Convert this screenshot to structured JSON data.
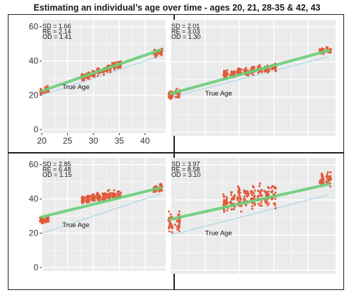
{
  "title": "Estimating an individual’s age over time - ages 20, 21, 28-35 & 42, 43",
  "colors": {
    "points": "#e05a3a",
    "fit_line": "#6ccf7a",
    "true_age_line": "#a8d8e8",
    "panel_bg": "#ebebeb",
    "grid": "#ffffff"
  },
  "chart_data": [
    {
      "type": "scatter",
      "panel": "top-left",
      "xlim": [
        20,
        44
      ],
      "ylim": [
        -2,
        64
      ],
      "x_ticks": [
        20,
        25,
        30,
        35,
        40
      ],
      "y_ticks": [
        0,
        20,
        40,
        60
      ],
      "show_x_tick_labels": true,
      "show_y_tick_labels": true,
      "stats": [
        "SD = 1.66",
        "RE = 2.14",
        "OD = 1.41"
      ],
      "annotation": {
        "text": "True Age",
        "x": 24,
        "y": 23.5
      },
      "fit_line": {
        "x": [
          20,
          43
        ],
        "y": [
          22.5,
          46.5
        ]
      },
      "true_age_line": {
        "x": [
          20,
          43
        ],
        "y": [
          20,
          43
        ]
      },
      "groups": [
        {
          "age": 20,
          "center": 22,
          "spread": 2.6
        },
        {
          "age": 21,
          "center": 23.5,
          "spread": 2.6
        },
        {
          "age": 28,
          "center": 30.5,
          "spread": 2.6
        },
        {
          "age": 29,
          "center": 31.5,
          "spread": 2.6
        },
        {
          "age": 30,
          "center": 32.5,
          "spread": 2.8
        },
        {
          "age": 31,
          "center": 33.5,
          "spread": 2.8
        },
        {
          "age": 32,
          "center": 34.5,
          "spread": 3.0
        },
        {
          "age": 33,
          "center": 36,
          "spread": 3.4
        },
        {
          "age": 34,
          "center": 37,
          "spread": 3.4
        },
        {
          "age": 35,
          "center": 38,
          "spread": 3.4
        },
        {
          "age": 42,
          "center": 44.5,
          "spread": 2.6
        },
        {
          "age": 43,
          "center": 45.5,
          "spread": 2.6
        }
      ]
    },
    {
      "type": "scatter",
      "panel": "top-right",
      "xlim": [
        20,
        44
      ],
      "ylim": [
        -2,
        64
      ],
      "x_ticks": [
        20,
        25,
        30,
        35,
        40
      ],
      "y_ticks": [
        0,
        20,
        40,
        60
      ],
      "show_x_tick_labels": false,
      "show_y_tick_labels": false,
      "stats": [
        "SD = 2.01",
        "RE = 3.03",
        "OD = 1.30"
      ],
      "annotation": {
        "text": "True Age",
        "x": 25,
        "y": 21
      },
      "fit_line": {
        "x": [
          20,
          43
        ],
        "y": [
          22,
          46.5
        ]
      },
      "true_age_line": {
        "x": [
          20,
          43
        ],
        "y": [
          20,
          43
        ]
      },
      "groups": [
        {
          "age": 20,
          "center": 21,
          "spread": 3.4
        },
        {
          "age": 21,
          "center": 22.5,
          "spread": 3.4
        },
        {
          "age": 28,
          "center": 33,
          "spread": 3.0
        },
        {
          "age": 29,
          "center": 33.5,
          "spread": 3.0
        },
        {
          "age": 30,
          "center": 34,
          "spread": 3.0
        },
        {
          "age": 31,
          "center": 34.5,
          "spread": 3.0
        },
        {
          "age": 32,
          "center": 35,
          "spread": 3.2
        },
        {
          "age": 33,
          "center": 35.5,
          "spread": 3.2
        },
        {
          "age": 34,
          "center": 36,
          "spread": 3.2
        },
        {
          "age": 35,
          "center": 36.5,
          "spread": 3.4
        },
        {
          "age": 42,
          "center": 46,
          "spread": 2.6
        },
        {
          "age": 43,
          "center": 46.5,
          "spread": 2.6
        }
      ]
    },
    {
      "type": "scatter",
      "panel": "bottom-left",
      "xlim": [
        20,
        44
      ],
      "ylim": [
        -2,
        64
      ],
      "x_ticks": [
        20,
        25,
        30,
        35,
        40
      ],
      "y_ticks": [
        0,
        20,
        40,
        60
      ],
      "show_x_tick_labels": false,
      "show_y_tick_labels": true,
      "stats": [
        "SD = 2.85",
        "RE = 6.48",
        "OD = 1.15"
      ],
      "annotation": {
        "text": "True Age",
        "x": 24,
        "y": 23.5
      },
      "fit_line": {
        "x": [
          20,
          43
        ],
        "y": [
          29.5,
          46.5
        ]
      },
      "true_age_line": {
        "x": [
          20,
          43
        ],
        "y": [
          20,
          43
        ]
      },
      "groups": [
        {
          "age": 20,
          "center": 27,
          "spread": 3.4
        },
        {
          "age": 21,
          "center": 28,
          "spread": 3.4
        },
        {
          "age": 28,
          "center": 39.5,
          "spread": 3.4
        },
        {
          "age": 29,
          "center": 40,
          "spread": 3.4
        },
        {
          "age": 30,
          "center": 40.5,
          "spread": 3.6
        },
        {
          "age": 31,
          "center": 41,
          "spread": 3.6
        },
        {
          "age": 32,
          "center": 41.5,
          "spread": 3.6
        },
        {
          "age": 33,
          "center": 42,
          "spread": 3.6
        },
        {
          "age": 34,
          "center": 42,
          "spread": 3.6
        },
        {
          "age": 35,
          "center": 42.5,
          "spread": 3.6
        },
        {
          "age": 42,
          "center": 46,
          "spread": 3.0
        },
        {
          "age": 43,
          "center": 46.5,
          "spread": 3.0
        }
      ]
    },
    {
      "type": "scatter",
      "panel": "bottom-right",
      "xlim": [
        20,
        44
      ],
      "ylim": [
        -2,
        64
      ],
      "x_ticks": [
        20,
        25,
        30,
        35,
        40
      ],
      "y_ticks": [
        0,
        20,
        40,
        60
      ],
      "show_x_tick_labels": false,
      "show_y_tick_labels": false,
      "stats": [
        "SD = 3.97",
        "RE = 8.58",
        "OD = 3.10"
      ],
      "annotation": {
        "text": "True Age",
        "x": 25,
        "y": 20
      },
      "fit_line": {
        "x": [
          20,
          43
        ],
        "y": [
          29,
          49
        ]
      },
      "true_age_line": {
        "x": [
          20,
          43
        ],
        "y": [
          20,
          43
        ]
      },
      "groups": [
        {
          "age": 20,
          "center": 27,
          "spread": 9.0
        },
        {
          "age": 21,
          "center": 28,
          "spread": 9.0
        },
        {
          "age": 28,
          "center": 39,
          "spread": 10.0
        },
        {
          "age": 29,
          "center": 40,
          "spread": 10.0
        },
        {
          "age": 30,
          "center": 40.5,
          "spread": 10.0
        },
        {
          "age": 31,
          "center": 41,
          "spread": 10.0
        },
        {
          "age": 32,
          "center": 41.5,
          "spread": 10.0
        },
        {
          "age": 33,
          "center": 42,
          "spread": 10.0
        },
        {
          "age": 34,
          "center": 42.5,
          "spread": 10.0
        },
        {
          "age": 35,
          "center": 43,
          "spread": 10.0
        },
        {
          "age": 42,
          "center": 51,
          "spread": 5.0
        },
        {
          "age": 43,
          "center": 52,
          "spread": 5.0
        }
      ]
    }
  ]
}
